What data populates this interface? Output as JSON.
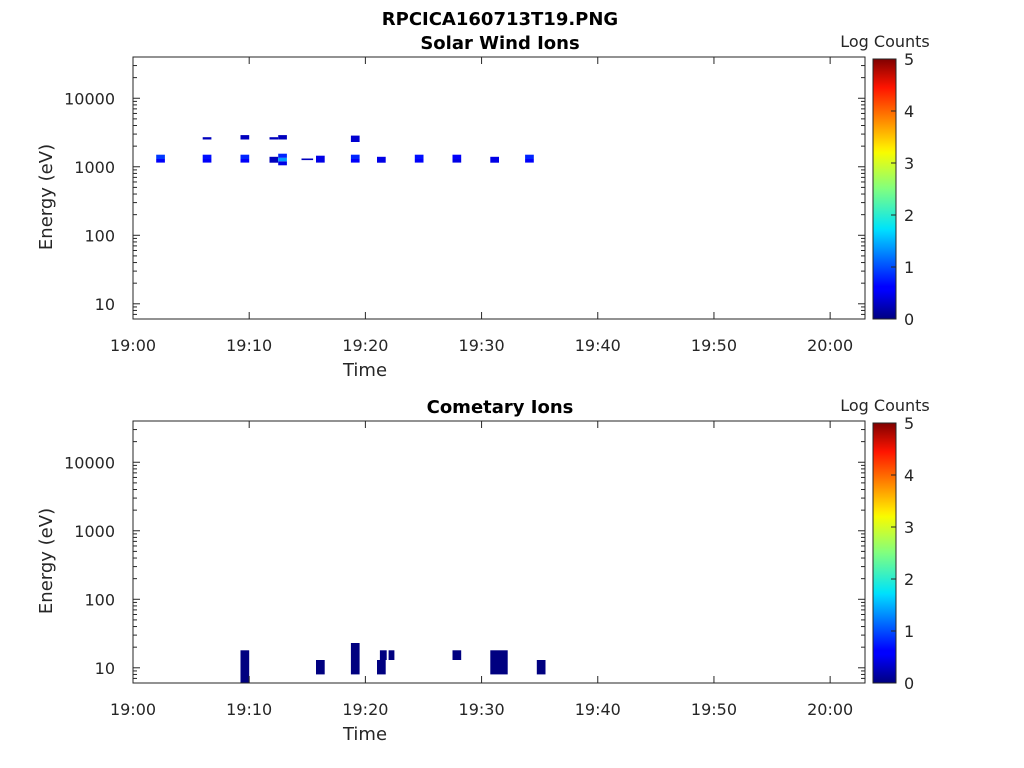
{
  "figure_title": "RPCICA160713T19.PNG",
  "chart_data": [
    {
      "type": "heatmap",
      "title": "Solar Wind Ions",
      "xlabel": "Time",
      "ylabel": "Energy (eV)",
      "xlim": [
        "19:00",
        "20:03"
      ],
      "ylim": [
        6,
        40000
      ],
      "yscale": "log",
      "x_ticks": [
        "19:00",
        "19:10",
        "19:20",
        "19:30",
        "19:40",
        "19:50",
        "20:00"
      ],
      "y_ticks": [
        "10",
        "100",
        "1000",
        "10000"
      ],
      "colorbar": {
        "label": "Log Counts",
        "range": [
          0,
          5
        ],
        "ticks": [
          "0",
          "1",
          "2",
          "3",
          "4",
          "5"
        ],
        "colormap": "jet"
      },
      "cells": [
        {
          "t0": "19:02:00",
          "t1": "19:02:45",
          "e_low": 1150,
          "e_high": 1300,
          "log_counts": 0.6
        },
        {
          "t0": "19:02:00",
          "t1": "19:02:45",
          "e_low": 1300,
          "e_high": 1500,
          "log_counts": 0.9
        },
        {
          "t0": "19:06:00",
          "t1": "19:06:45",
          "e_low": 1150,
          "e_high": 1300,
          "log_counts": 0.6
        },
        {
          "t0": "19:06:00",
          "t1": "19:06:45",
          "e_low": 1300,
          "e_high": 1500,
          "log_counts": 0.7
        },
        {
          "t0": "19:06:00",
          "t1": "19:06:45",
          "e_low": 2500,
          "e_high": 2700,
          "log_counts": 0.3
        },
        {
          "t0": "19:09:15",
          "t1": "19:10:00",
          "e_low": 1150,
          "e_high": 1300,
          "log_counts": 0.6
        },
        {
          "t0": "19:09:15",
          "t1": "19:10:00",
          "e_low": 1300,
          "e_high": 1500,
          "log_counts": 0.8
        },
        {
          "t0": "19:09:15",
          "t1": "19:10:00",
          "e_low": 2500,
          "e_high": 2900,
          "log_counts": 0.3
        },
        {
          "t0": "19:11:45",
          "t1": "19:12:30",
          "e_low": 1150,
          "e_high": 1400,
          "log_counts": 0.3
        },
        {
          "t0": "19:11:45",
          "t1": "19:12:30",
          "e_low": 2500,
          "e_high": 2700,
          "log_counts": 0.3
        },
        {
          "t0": "19:12:30",
          "t1": "19:13:15",
          "e_low": 1050,
          "e_high": 1200,
          "log_counts": 0.5
        },
        {
          "t0": "19:12:30",
          "t1": "19:13:15",
          "e_low": 1200,
          "e_high": 1350,
          "log_counts": 1.4
        },
        {
          "t0": "19:12:30",
          "t1": "19:13:15",
          "e_low": 1350,
          "e_high": 1550,
          "log_counts": 0.8
        },
        {
          "t0": "19:12:30",
          "t1": "19:13:15",
          "e_low": 2500,
          "e_high": 2900,
          "log_counts": 0.3
        },
        {
          "t0": "19:14:30",
          "t1": "19:15:30",
          "e_low": 1250,
          "e_high": 1320,
          "log_counts": 0.3
        },
        {
          "t0": "19:15:45",
          "t1": "19:16:30",
          "e_low": 1150,
          "e_high": 1450,
          "log_counts": 0.5
        },
        {
          "t0": "19:18:45",
          "t1": "19:19:30",
          "e_low": 1150,
          "e_high": 1300,
          "log_counts": 0.6
        },
        {
          "t0": "19:18:45",
          "t1": "19:19:30",
          "e_low": 1300,
          "e_high": 1500,
          "log_counts": 0.8
        },
        {
          "t0": "19:18:45",
          "t1": "19:19:30",
          "e_low": 2300,
          "e_high": 2850,
          "log_counts": 0.4
        },
        {
          "t0": "19:21:00",
          "t1": "19:21:45",
          "e_low": 1150,
          "e_high": 1400,
          "log_counts": 0.5
        },
        {
          "t0": "19:24:15",
          "t1": "19:25:00",
          "e_low": 1150,
          "e_high": 1300,
          "log_counts": 0.6
        },
        {
          "t0": "19:24:15",
          "t1": "19:25:00",
          "e_low": 1300,
          "e_high": 1500,
          "log_counts": 0.7
        },
        {
          "t0": "19:27:30",
          "t1": "19:28:15",
          "e_low": 1150,
          "e_high": 1300,
          "log_counts": 0.5
        },
        {
          "t0": "19:27:30",
          "t1": "19:28:15",
          "e_low": 1300,
          "e_high": 1500,
          "log_counts": 0.6
        },
        {
          "t0": "19:30:45",
          "t1": "19:31:30",
          "e_low": 1150,
          "e_high": 1400,
          "log_counts": 0.5
        },
        {
          "t0": "19:33:45",
          "t1": "19:34:30",
          "e_low": 1150,
          "e_high": 1300,
          "log_counts": 0.6
        },
        {
          "t0": "19:33:45",
          "t1": "19:34:30",
          "e_low": 1300,
          "e_high": 1500,
          "log_counts": 0.8
        }
      ]
    },
    {
      "type": "heatmap",
      "title": "Cometary Ions",
      "xlabel": "Time",
      "ylabel": "Energy (eV)",
      "xlim": [
        "19:00",
        "20:03"
      ],
      "ylim": [
        6,
        40000
      ],
      "yscale": "log",
      "x_ticks": [
        "19:00",
        "19:10",
        "19:20",
        "19:30",
        "19:40",
        "19:50",
        "20:00"
      ],
      "y_ticks": [
        "10",
        "100",
        "1000",
        "10000"
      ],
      "colorbar": {
        "label": "Log Counts",
        "range": [
          0,
          5
        ],
        "ticks": [
          "0",
          "1",
          "2",
          "3",
          "4",
          "5"
        ],
        "colormap": "jet"
      },
      "cells": [
        {
          "t0": "19:09:15",
          "t1": "19:10:00",
          "e_low": 6,
          "e_high": 18,
          "log_counts": 0.0
        },
        {
          "t0": "19:15:45",
          "t1": "19:16:30",
          "e_low": 8,
          "e_high": 13,
          "log_counts": 0.0
        },
        {
          "t0": "19:18:45",
          "t1": "19:19:30",
          "e_low": 8,
          "e_high": 23,
          "log_counts": 0.0
        },
        {
          "t0": "19:21:00",
          "t1": "19:21:45",
          "e_low": 8,
          "e_high": 13,
          "log_counts": 0.0
        },
        {
          "t0": "19:21:15",
          "t1": "19:21:50",
          "e_low": 13,
          "e_high": 18,
          "log_counts": 0.0
        },
        {
          "t0": "19:22:00",
          "t1": "19:22:30",
          "e_low": 13,
          "e_high": 18,
          "log_counts": 0.0
        },
        {
          "t0": "19:27:30",
          "t1": "19:28:15",
          "e_low": 13,
          "e_high": 18,
          "log_counts": 0.0
        },
        {
          "t0": "19:30:45",
          "t1": "19:32:15",
          "e_low": 8,
          "e_high": 18,
          "log_counts": 0.0
        },
        {
          "t0": "19:34:45",
          "t1": "19:35:30",
          "e_low": 8,
          "e_high": 13,
          "log_counts": 0.0
        }
      ]
    }
  ]
}
